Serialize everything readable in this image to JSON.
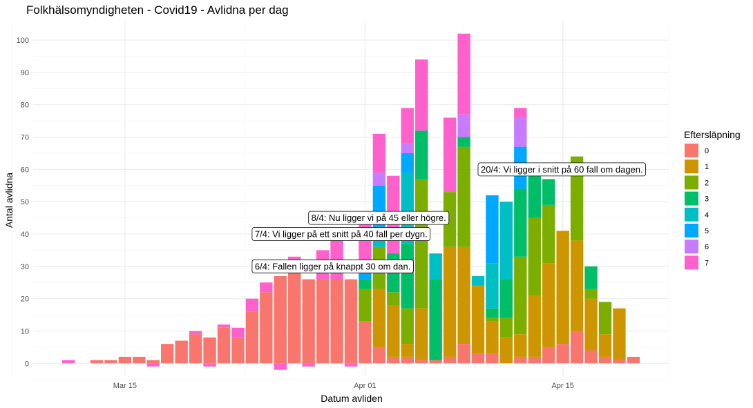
{
  "chart_data": {
    "type": "bar",
    "stacked": true,
    "title": "Folkhälsomyndigheten - Covid19 - Avlidna per dag",
    "xlabel": "Datum avliden",
    "ylabel": "Antal avlidna",
    "ylim": [
      -4,
      106
    ],
    "y_ticks": [
      0,
      10,
      20,
      30,
      40,
      50,
      60,
      70,
      80,
      90,
      100
    ],
    "x_ticks": [
      "Mar 15",
      "Apr 01",
      "Apr 15"
    ],
    "x_tick_dates": [
      "2020-03-15",
      "2020-04-01",
      "2020-04-15"
    ],
    "grid": true,
    "legend": {
      "title": "Eftersläpning",
      "position": "right",
      "entries": [
        "0",
        "1",
        "2",
        "3",
        "4",
        "5",
        "6",
        "7"
      ]
    },
    "colors": [
      "#F8766D",
      "#CD9600",
      "#7CAE00",
      "#00BE67",
      "#00BFC4",
      "#00A9FF",
      "#C77CFF",
      "#FF61CC"
    ],
    "dates": [
      "2020-03-11",
      "2020-03-12",
      "2020-03-13",
      "2020-03-14",
      "2020-03-15",
      "2020-03-16",
      "2020-03-17",
      "2020-03-18",
      "2020-03-19",
      "2020-03-20",
      "2020-03-21",
      "2020-03-22",
      "2020-03-23",
      "2020-03-24",
      "2020-03-25",
      "2020-03-26",
      "2020-03-27",
      "2020-03-28",
      "2020-03-29",
      "2020-03-30",
      "2020-03-31",
      "2020-04-01",
      "2020-04-02",
      "2020-04-03",
      "2020-04-04",
      "2020-04-05",
      "2020-04-06",
      "2020-04-07",
      "2020-04-08",
      "2020-04-09",
      "2020-04-10",
      "2020-04-11",
      "2020-04-12",
      "2020-04-13",
      "2020-04-14",
      "2020-04-15",
      "2020-04-16",
      "2020-04-17",
      "2020-04-18",
      "2020-04-19",
      "2020-04-20"
    ],
    "series": [
      {
        "name": "0",
        "values": [
          0,
          0,
          1,
          1,
          2,
          2,
          1,
          6,
          7,
          9,
          8,
          11,
          8,
          16,
          22,
          27,
          30,
          26,
          26,
          26,
          26,
          13,
          5,
          2,
          2,
          1,
          1,
          2,
          6,
          3,
          3,
          0,
          2,
          2,
          5,
          6,
          10,
          4,
          2,
          1,
          2
        ]
      },
      {
        "name": "1",
        "values": [
          0,
          0,
          0,
          0,
          0,
          0,
          0,
          0,
          0,
          0,
          0,
          0,
          0,
          0,
          0,
          0,
          0,
          0,
          0,
          0,
          0,
          0,
          18,
          16,
          4,
          16,
          0,
          34,
          30,
          21,
          10,
          8,
          7,
          19,
          26,
          35,
          28,
          16,
          7,
          16,
          0
        ]
      },
      {
        "name": "2",
        "values": [
          0,
          0,
          0,
          0,
          0,
          0,
          0,
          0,
          0,
          0,
          0,
          0,
          0,
          0,
          0,
          0,
          0,
          0,
          0,
          0,
          0,
          10,
          13,
          4,
          11,
          40,
          0,
          17,
          31,
          0,
          1,
          6,
          24,
          24,
          18,
          0,
          26,
          3,
          10,
          0,
          0
        ]
      },
      {
        "name": "3",
        "values": [
          0,
          0,
          0,
          0,
          0,
          0,
          0,
          0,
          0,
          0,
          0,
          0,
          0,
          0,
          0,
          0,
          0,
          0,
          0,
          0,
          0,
          3,
          0,
          12,
          20,
          15,
          25,
          0,
          3,
          0,
          3,
          12,
          21,
          17,
          8,
          0,
          0,
          7,
          0,
          0,
          0
        ]
      },
      {
        "name": "4",
        "values": [
          0,
          0,
          0,
          0,
          0,
          0,
          0,
          0,
          0,
          0,
          0,
          0,
          0,
          0,
          0,
          0,
          0,
          0,
          0,
          0,
          0,
          0,
          4,
          0,
          22,
          0,
          8,
          0,
          0,
          3,
          14,
          24,
          0,
          0,
          0,
          0,
          0,
          0,
          0,
          0,
          0
        ]
      },
      {
        "name": "5",
        "values": [
          0,
          0,
          0,
          0,
          0,
          0,
          0,
          0,
          0,
          0,
          0,
          0,
          0,
          0,
          0,
          0,
          0,
          0,
          0,
          0,
          0,
          3,
          15,
          0,
          6,
          0,
          0,
          0,
          0,
          0,
          21,
          0,
          13,
          0,
          0,
          0,
          0,
          0,
          0,
          0,
          0
        ]
      },
      {
        "name": "6",
        "values": [
          0,
          0,
          0,
          0,
          0,
          0,
          0,
          0,
          0,
          0,
          0,
          0,
          0,
          0,
          0,
          0,
          0,
          0,
          0,
          0,
          0,
          0,
          4,
          0,
          3,
          0,
          0,
          0,
          7,
          0,
          0,
          0,
          9,
          0,
          0,
          0,
          0,
          0,
          0,
          0,
          0
        ]
      },
      {
        "name": "7",
        "values": [
          1,
          0,
          0,
          0,
          0,
          0,
          -1,
          0,
          0,
          1,
          -1,
          1,
          3,
          4,
          3,
          -2,
          3,
          -1,
          9,
          12,
          -1,
          14,
          12,
          24,
          11,
          22,
          0,
          23,
          25,
          0,
          0,
          0,
          3,
          0,
          0,
          0,
          0,
          0,
          0,
          0,
          0
        ]
      }
    ],
    "annotations": [
      {
        "text": "20/4: Vi ligger i snitt på 60 fall om dagen.",
        "date": "2020-04-09",
        "y": 60
      },
      {
        "text": "8/4: Nu ligger vi på 45 eller högre.",
        "date": "2020-03-28",
        "y": 45
      },
      {
        "text": "7/4: Vi ligger på ett snitt på 40 fall per dygn.",
        "date": "2020-03-24",
        "y": 40
      },
      {
        "text": "6/4: Fallen ligger på knappt 30 om dan.",
        "date": "2020-03-24",
        "y": 30
      }
    ]
  }
}
